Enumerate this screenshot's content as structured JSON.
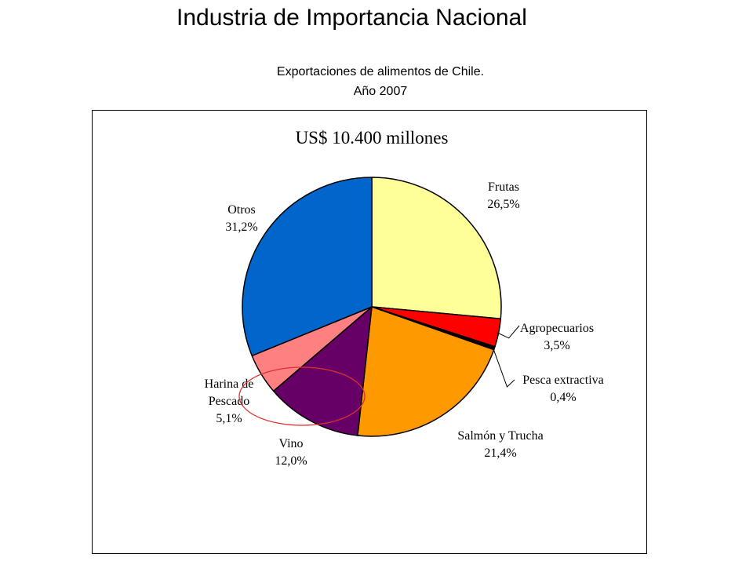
{
  "page": {
    "title": "Industria de Importancia Nacional",
    "subtitle_line1": "Exportaciones de alimentos de Chile.",
    "subtitle_line2": "Año 2007"
  },
  "chart_data": {
    "type": "pie",
    "title": "US$ 10.400 millones",
    "slices": [
      {
        "name": "Frutas",
        "value": 26.5,
        "label": "26,5%",
        "color": "#FFFF99"
      },
      {
        "name": "Agropecuarios",
        "value": 3.5,
        "label": "3,5%",
        "color": "#FF0000"
      },
      {
        "name": "Pesca extractiva",
        "value": 0.4,
        "label": "0,4%",
        "color": "#000000"
      },
      {
        "name": "Salmón y Trucha",
        "value": 21.4,
        "label": "21,4%",
        "color": "#FF9900"
      },
      {
        "name": "Vino",
        "value": 12.0,
        "label": "12,0%",
        "color": "#660066"
      },
      {
        "name": "Harina de Pescado",
        "value": 5.1,
        "label": "5,1%",
        "color": "#FF8080"
      },
      {
        "name": "Otros",
        "value": 31.2,
        "label": "31,2%",
        "color": "#0066CC"
      }
    ],
    "start_angle": "top",
    "direction": "clockwise",
    "highlight": "Vino"
  }
}
